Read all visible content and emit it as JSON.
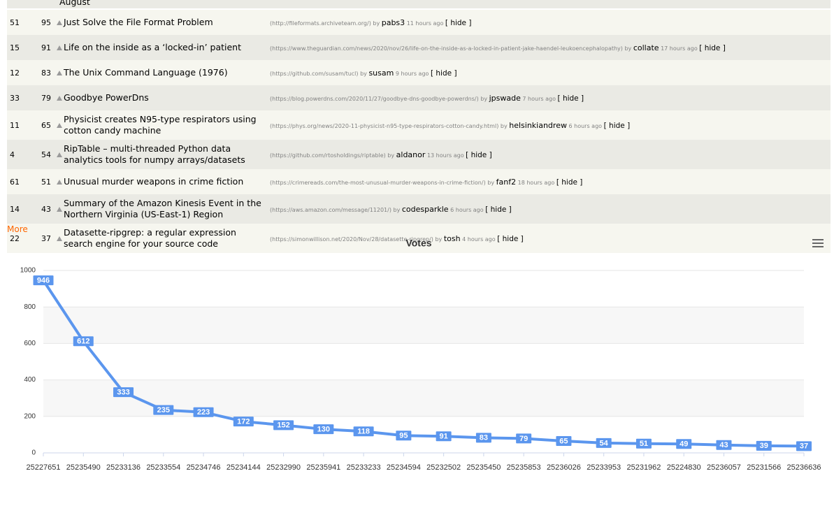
{
  "table": {
    "top_fragment": "August",
    "by_label": "by",
    "hide_label": "[ hide ]",
    "rows": [
      [
        51,
        95,
        "Just Solve the File Format Problem",
        "(http://fileformats.archiveteam.org/)",
        "pabs3",
        "11 hours ago"
      ],
      [
        15,
        91,
        "Life on the inside as a ‘locked-in’ patient",
        "(https://www.theguardian.com/news/2020/nov/26/life-on-the-inside-as-a-locked-in-patient-jake-haendel-leukoencephalopathy)",
        "collate",
        "17 hours ago"
      ],
      [
        12,
        83,
        "The Unix Command Language (1976)",
        "(https://github.com/susam/tucl)",
        "susam",
        "9 hours ago"
      ],
      [
        33,
        79,
        "Goodbye PowerDns",
        "(https://blog.powerdns.com/2020/11/27/goodbye-dns-goodbye-powerdns/)",
        "jpswade",
        "7 hours ago"
      ],
      [
        11,
        65,
        "Physicist creates N95-type respirators using cotton candy machine",
        "(https://phys.org/news/2020-11-physicist-n95-type-respirators-cotton-candy.html)",
        "helsinkiandrew",
        "6 hours ago"
      ],
      [
        4,
        54,
        "RipTable – multi-threaded Python data analytics tools for numpy arrays/datasets",
        "(https://github.com/rtosholdings/riptable)",
        "aldanor",
        "13 hours ago"
      ],
      [
        61,
        51,
        "Unusual murder weapons in crime fiction",
        "(https://crimereads.com/the-most-unusual-murder-weapons-in-crime-fiction/)",
        "fanf2",
        "18 hours ago"
      ],
      [
        14,
        43,
        "Summary of the Amazon Kinesis Event in the Northern Virginia (US-East-1) Region",
        "(https://aws.amazon.com/message/11201/)",
        "codesparkle",
        "6 hours ago"
      ],
      [
        22,
        37,
        "Datasette-ripgrep: a regular expression search engine for your source code",
        "(https://simonwillison.net/2020/Nov/28/datasette-ripgrep/)",
        "tosh",
        "4 hours ago"
      ]
    ]
  },
  "more": "More",
  "chart_data": {
    "type": "line",
    "title": "Votes",
    "color": "#5b96ee",
    "categories": [
      "25227651",
      "25235490",
      "25233136",
      "25233554",
      "25234746",
      "25234144",
      "25232990",
      "25235941",
      "25233233",
      "25234594",
      "25232502",
      "25235450",
      "25235853",
      "25236026",
      "25233953",
      "25231962",
      "25224830",
      "25236057",
      "25231566",
      "25236636"
    ],
    "values": [
      946,
      612,
      333,
      235,
      223,
      172,
      152,
      130,
      118,
      95,
      91,
      83,
      79,
      65,
      54,
      51,
      49,
      43,
      39,
      37
    ],
    "ylim": [
      0,
      1000
    ],
    "yticks": [
      0,
      200,
      400,
      600,
      800,
      1000
    ],
    "grid": true
  }
}
